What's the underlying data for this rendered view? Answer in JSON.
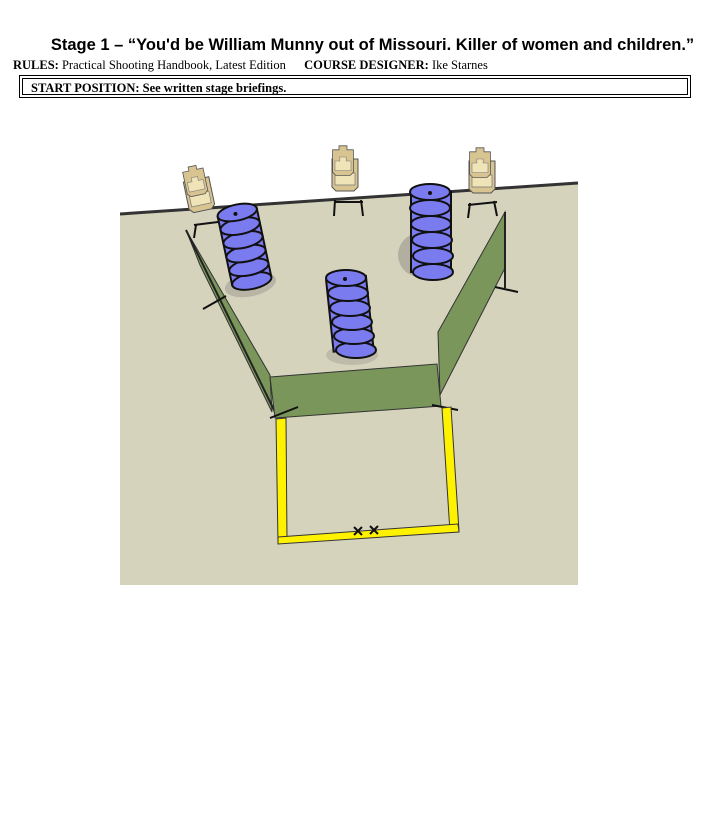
{
  "header": {
    "title": "Stage 1 – “You'd be William Munny out of Missouri. Killer of women and children.”",
    "rules_label": "RULES:",
    "rules_value": "Practical Shooting Handbook, Latest Edition",
    "designer_label": "COURSE DESIGNER:",
    "designer_value": "Ike Starnes"
  },
  "start_position": {
    "text": "START POSITION: See written stage briefings."
  },
  "diagram": {
    "ground_color": "#d6d3bd",
    "barrel_color": "#7b7bf0",
    "wall_color": "#7a965a",
    "fault_line_color": "#fff200",
    "target_color": "#d8c491",
    "targets": 3,
    "barrel_stacks": 3,
    "start_marks": 2
  }
}
